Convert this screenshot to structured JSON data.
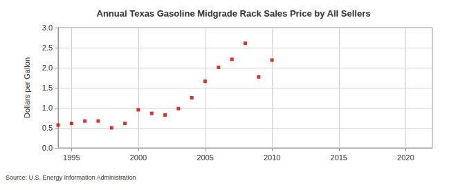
{
  "chart_data": {
    "type": "scatter",
    "title": "Annual Texas Gasoline Midgrade Rack Sales Price by All Sellers",
    "y_label": "Dollars per Gallon",
    "source": "Source: U.S. Energy Information Administration",
    "x": [
      1994,
      1995,
      1996,
      1997,
      1998,
      1999,
      2000,
      2001,
      2002,
      2003,
      2004,
      2005,
      2006,
      2007,
      2008,
      2009,
      2010
    ],
    "values": [
      0.57,
      0.61,
      0.67,
      0.67,
      0.5,
      0.61,
      0.95,
      0.86,
      0.82,
      0.98,
      1.25,
      1.66,
      2.01,
      2.21,
      2.61,
      1.77,
      2.19
    ],
    "color": "#cc0000",
    "marker": "square",
    "xlim": [
      1994,
      2022
    ],
    "xticks": [
      1995,
      2000,
      2005,
      2010,
      2015,
      2020
    ],
    "ylim": [
      0,
      3
    ],
    "yticks": [
      {
        "value": 0,
        "label": "0.0"
      },
      {
        "value": 0.5,
        "label": "0.5"
      },
      {
        "value": 1,
        "label": "1.0"
      },
      {
        "value": 1.5,
        "label": "1.5"
      },
      {
        "value": 2,
        "label": "2.0"
      },
      {
        "value": 2.5,
        "label": "2.5"
      },
      {
        "value": 3,
        "label": "3.0"
      }
    ],
    "grid": true
  }
}
